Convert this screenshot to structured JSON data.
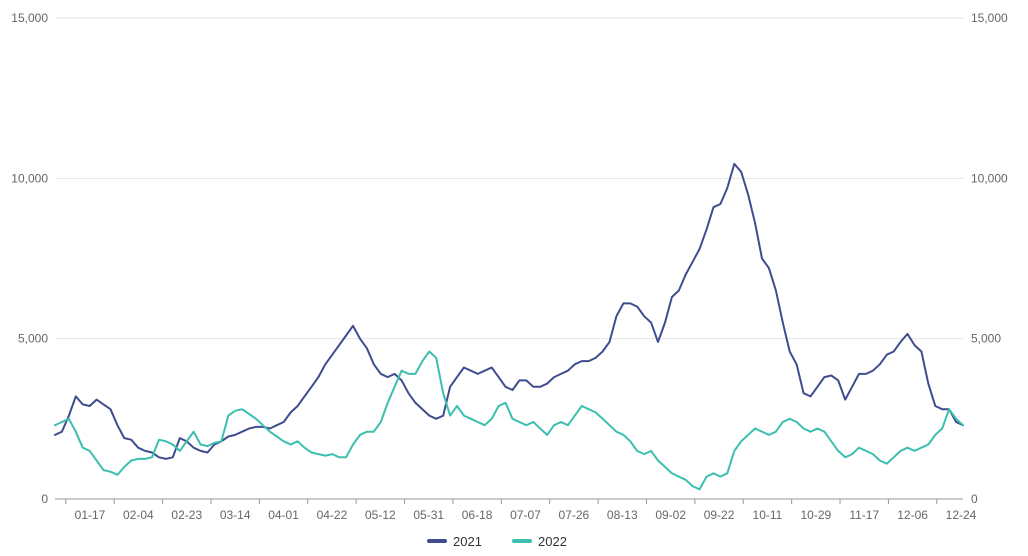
{
  "chart_data": {
    "type": "line",
    "x_ticks": [
      "01-17",
      "02-04",
      "02-23",
      "03-14",
      "04-01",
      "04-22",
      "05-12",
      "05-31",
      "06-18",
      "07-07",
      "07-26",
      "08-13",
      "09-02",
      "09-22",
      "10-11",
      "10-29",
      "11-17",
      "12-06",
      "12-24"
    ],
    "ylim": [
      0,
      15000
    ],
    "y_ticks_left": [
      "0",
      "5,000",
      "10,000",
      "15,000"
    ],
    "y_ticks_right": [
      "0",
      "5,000",
      "10,000",
      "15,000"
    ],
    "grid": "horizontal",
    "legend_position": "bottom-center",
    "series": [
      {
        "name": "2021",
        "color": "#3f4d8f",
        "points": [
          [
            0,
            2000
          ],
          [
            3,
            2100
          ],
          [
            6,
            2600
          ],
          [
            9,
            3200
          ],
          [
            12,
            2950
          ],
          [
            15,
            2900
          ],
          [
            18,
            3100
          ],
          [
            21,
            2950
          ],
          [
            24,
            2800
          ],
          [
            27,
            2300
          ],
          [
            30,
            1900
          ],
          [
            33,
            1850
          ],
          [
            36,
            1600
          ],
          [
            39,
            1500
          ],
          [
            42,
            1450
          ],
          [
            45,
            1300
          ],
          [
            48,
            1250
          ],
          [
            51,
            1300
          ],
          [
            54,
            1900
          ],
          [
            57,
            1800
          ],
          [
            60,
            1600
          ],
          [
            63,
            1500
          ],
          [
            66,
            1450
          ],
          [
            69,
            1700
          ],
          [
            72,
            1800
          ],
          [
            75,
            1950
          ],
          [
            78,
            2000
          ],
          [
            81,
            2100
          ],
          [
            84,
            2200
          ],
          [
            87,
            2250
          ],
          [
            90,
            2250
          ],
          [
            93,
            2200
          ],
          [
            96,
            2300
          ],
          [
            99,
            2400
          ],
          [
            102,
            2700
          ],
          [
            105,
            2900
          ],
          [
            108,
            3200
          ],
          [
            111,
            3500
          ],
          [
            114,
            3800
          ],
          [
            117,
            4200
          ],
          [
            120,
            4500
          ],
          [
            123,
            4800
          ],
          [
            126,
            5100
          ],
          [
            129,
            5400
          ],
          [
            132,
            5000
          ],
          [
            135,
            4700
          ],
          [
            138,
            4200
          ],
          [
            141,
            3900
          ],
          [
            144,
            3800
          ],
          [
            147,
            3900
          ],
          [
            150,
            3700
          ],
          [
            153,
            3300
          ],
          [
            156,
            3000
          ],
          [
            159,
            2800
          ],
          [
            162,
            2600
          ],
          [
            165,
            2500
          ],
          [
            168,
            2600
          ],
          [
            171,
            3500
          ],
          [
            174,
            3800
          ],
          [
            177,
            4100
          ],
          [
            180,
            4000
          ],
          [
            183,
            3900
          ],
          [
            186,
            4000
          ],
          [
            189,
            4100
          ],
          [
            192,
            3800
          ],
          [
            195,
            3500
          ],
          [
            198,
            3400
          ],
          [
            201,
            3700
          ],
          [
            204,
            3700
          ],
          [
            207,
            3500
          ],
          [
            210,
            3500
          ],
          [
            213,
            3600
          ],
          [
            216,
            3800
          ],
          [
            219,
            3900
          ],
          [
            222,
            4000
          ],
          [
            225,
            4200
          ],
          [
            228,
            4300
          ],
          [
            231,
            4300
          ],
          [
            234,
            4400
          ],
          [
            237,
            4600
          ],
          [
            240,
            4900
          ],
          [
            243,
            5700
          ],
          [
            246,
            6100
          ],
          [
            249,
            6100
          ],
          [
            252,
            6000
          ],
          [
            255,
            5700
          ],
          [
            258,
            5500
          ],
          [
            261,
            4900
          ],
          [
            264,
            5500
          ],
          [
            267,
            6300
          ],
          [
            270,
            6500
          ],
          [
            273,
            7000
          ],
          [
            276,
            7400
          ],
          [
            279,
            7800
          ],
          [
            282,
            8400
          ],
          [
            285,
            9100
          ],
          [
            288,
            9200
          ],
          [
            291,
            9700
          ],
          [
            294,
            10450
          ],
          [
            297,
            10200
          ],
          [
            300,
            9500
          ],
          [
            303,
            8600
          ],
          [
            306,
            7500
          ],
          [
            309,
            7200
          ],
          [
            312,
            6500
          ],
          [
            315,
            5500
          ],
          [
            318,
            4600
          ],
          [
            321,
            4200
          ],
          [
            324,
            3300
          ],
          [
            327,
            3200
          ],
          [
            330,
            3500
          ],
          [
            333,
            3800
          ],
          [
            336,
            3850
          ],
          [
            339,
            3700
          ],
          [
            342,
            3100
          ],
          [
            345,
            3500
          ],
          [
            348,
            3900
          ],
          [
            351,
            3900
          ],
          [
            354,
            4000
          ],
          [
            357,
            4200
          ],
          [
            360,
            4500
          ],
          [
            363,
            4600
          ],
          [
            366,
            4900
          ],
          [
            369,
            5150
          ],
          [
            372,
            4800
          ],
          [
            375,
            4600
          ],
          [
            378,
            3600
          ],
          [
            381,
            2900
          ],
          [
            384,
            2800
          ],
          [
            387,
            2800
          ],
          [
            390,
            2400
          ],
          [
            393,
            2300
          ]
        ]
      },
      {
        "name": "2022",
        "color": "#3cbfae",
        "points": [
          [
            0,
            2300
          ],
          [
            3,
            2400
          ],
          [
            6,
            2500
          ],
          [
            9,
            2100
          ],
          [
            12,
            1600
          ],
          [
            15,
            1500
          ],
          [
            18,
            1200
          ],
          [
            21,
            900
          ],
          [
            24,
            850
          ],
          [
            27,
            750
          ],
          [
            30,
            1000
          ],
          [
            33,
            1200
          ],
          [
            36,
            1250
          ],
          [
            39,
            1250
          ],
          [
            42,
            1300
          ],
          [
            45,
            1850
          ],
          [
            48,
            1800
          ],
          [
            51,
            1700
          ],
          [
            54,
            1500
          ],
          [
            57,
            1800
          ],
          [
            60,
            2100
          ],
          [
            63,
            1700
          ],
          [
            66,
            1650
          ],
          [
            69,
            1750
          ],
          [
            72,
            1800
          ],
          [
            75,
            2600
          ],
          [
            78,
            2750
          ],
          [
            81,
            2800
          ],
          [
            84,
            2650
          ],
          [
            87,
            2500
          ],
          [
            90,
            2300
          ],
          [
            93,
            2100
          ],
          [
            96,
            1950
          ],
          [
            99,
            1800
          ],
          [
            102,
            1700
          ],
          [
            105,
            1800
          ],
          [
            108,
            1600
          ],
          [
            111,
            1450
          ],
          [
            114,
            1400
          ],
          [
            117,
            1350
          ],
          [
            120,
            1400
          ],
          [
            123,
            1300
          ],
          [
            126,
            1300
          ],
          [
            129,
            1700
          ],
          [
            132,
            2000
          ],
          [
            135,
            2100
          ],
          [
            138,
            2100
          ],
          [
            141,
            2400
          ],
          [
            144,
            3000
          ],
          [
            147,
            3500
          ],
          [
            150,
            4000
          ],
          [
            153,
            3900
          ],
          [
            156,
            3900
          ],
          [
            159,
            4300
          ],
          [
            162,
            4600
          ],
          [
            165,
            4400
          ],
          [
            168,
            3300
          ],
          [
            171,
            2600
          ],
          [
            174,
            2900
          ],
          [
            177,
            2600
          ],
          [
            180,
            2500
          ],
          [
            183,
            2400
          ],
          [
            186,
            2300
          ],
          [
            189,
            2500
          ],
          [
            192,
            2900
          ],
          [
            195,
            3000
          ],
          [
            198,
            2500
          ],
          [
            201,
            2400
          ],
          [
            204,
            2300
          ],
          [
            207,
            2400
          ],
          [
            210,
            2200
          ],
          [
            213,
            2000
          ],
          [
            216,
            2300
          ],
          [
            219,
            2400
          ],
          [
            222,
            2300
          ],
          [
            225,
            2600
          ],
          [
            228,
            2900
          ],
          [
            231,
            2800
          ],
          [
            234,
            2700
          ],
          [
            237,
            2500
          ],
          [
            240,
            2300
          ],
          [
            243,
            2100
          ],
          [
            246,
            2000
          ],
          [
            249,
            1800
          ],
          [
            252,
            1500
          ],
          [
            255,
            1400
          ],
          [
            258,
            1500
          ],
          [
            261,
            1200
          ],
          [
            264,
            1000
          ],
          [
            267,
            800
          ],
          [
            270,
            700
          ],
          [
            273,
            600
          ],
          [
            276,
            400
          ],
          [
            279,
            300
          ],
          [
            282,
            700
          ],
          [
            285,
            800
          ],
          [
            288,
            700
          ],
          [
            291,
            800
          ],
          [
            294,
            1500
          ],
          [
            297,
            1800
          ],
          [
            300,
            2000
          ],
          [
            303,
            2200
          ],
          [
            306,
            2100
          ],
          [
            309,
            2000
          ],
          [
            312,
            2100
          ],
          [
            315,
            2400
          ],
          [
            318,
            2500
          ],
          [
            321,
            2400
          ],
          [
            324,
            2200
          ],
          [
            327,
            2100
          ],
          [
            330,
            2200
          ],
          [
            333,
            2100
          ],
          [
            336,
            1800
          ],
          [
            339,
            1500
          ],
          [
            342,
            1300
          ],
          [
            345,
            1400
          ],
          [
            348,
            1600
          ],
          [
            351,
            1500
          ],
          [
            354,
            1400
          ],
          [
            357,
            1200
          ],
          [
            360,
            1100
          ],
          [
            363,
            1300
          ],
          [
            366,
            1500
          ],
          [
            369,
            1600
          ],
          [
            372,
            1500
          ],
          [
            375,
            1600
          ],
          [
            378,
            1700
          ],
          [
            381,
            2000
          ],
          [
            384,
            2200
          ],
          [
            387,
            2800
          ],
          [
            390,
            2500
          ],
          [
            393,
            2300
          ]
        ]
      }
    ]
  }
}
